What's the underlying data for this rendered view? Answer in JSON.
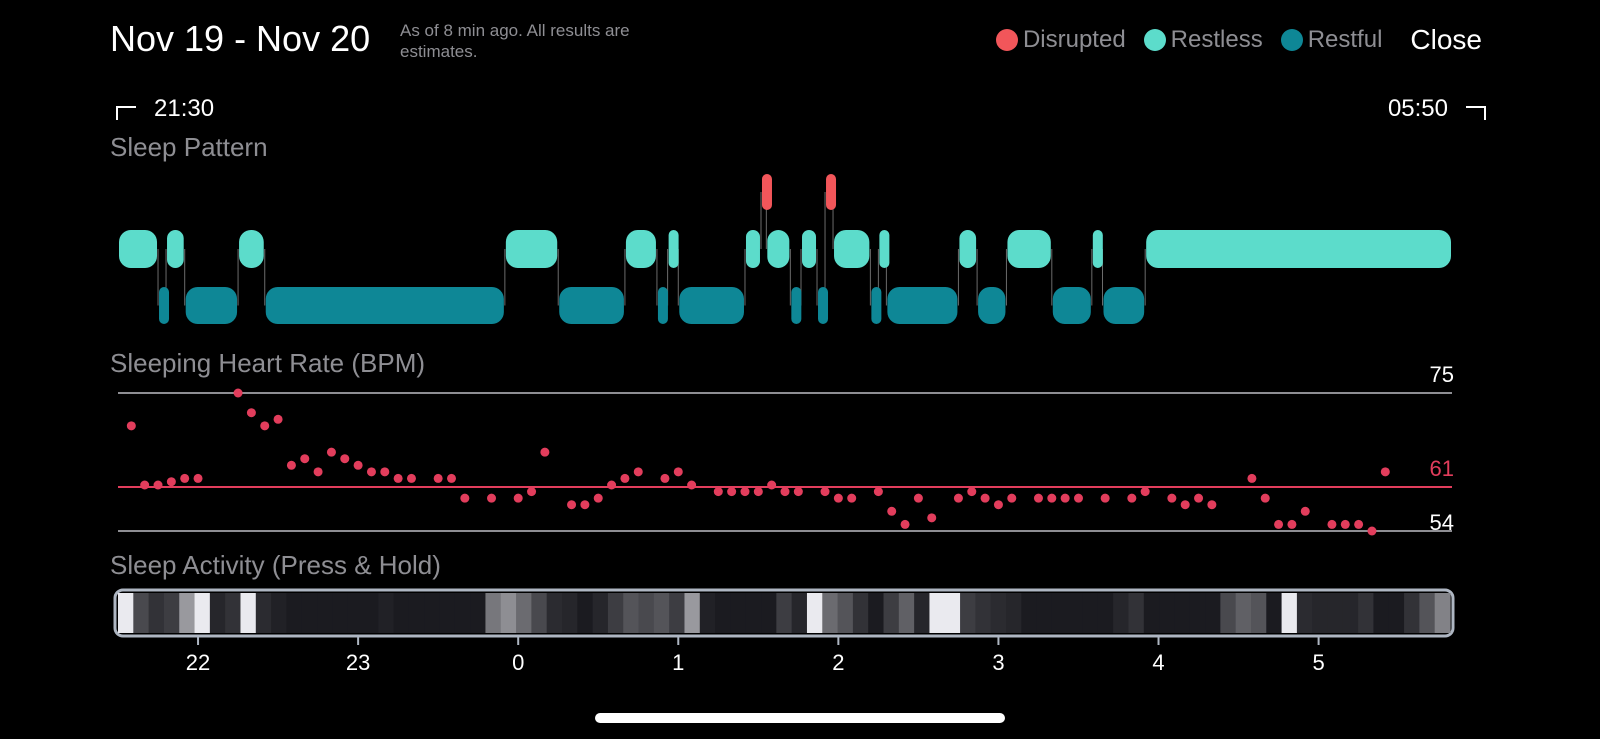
{
  "header": {
    "title": "Nov 19 - Nov 20",
    "subtitle": "As of 8 min ago. All results are estimates.",
    "close_label": "Close"
  },
  "legend": [
    {
      "label": "Disrupted",
      "color": "#f2565a"
    },
    {
      "label": "Restless",
      "color": "#5cdccb"
    },
    {
      "label": "Restful",
      "color": "#0e8796"
    }
  ],
  "time_range": {
    "start": "21:30",
    "end": "05:50"
  },
  "sleep_pattern": {
    "title": "Sleep Pattern",
    "segments": [
      {
        "start": "21:30",
        "end": "21:45",
        "stage": "restless"
      },
      {
        "start": "21:45",
        "end": "21:48",
        "stage": "restful"
      },
      {
        "start": "21:48",
        "end": "21:55",
        "stage": "restless"
      },
      {
        "start": "21:55",
        "end": "22:15",
        "stage": "restful"
      },
      {
        "start": "22:15",
        "end": "22:25",
        "stage": "restless"
      },
      {
        "start": "22:25",
        "end": "23:55",
        "stage": "restful"
      },
      {
        "start": "23:55",
        "end": "00:15",
        "stage": "restless"
      },
      {
        "start": "00:15",
        "end": "00:40",
        "stage": "restful"
      },
      {
        "start": "00:40",
        "end": "00:52",
        "stage": "restless"
      },
      {
        "start": "00:52",
        "end": "00:56",
        "stage": "restful"
      },
      {
        "start": "00:56",
        "end": "01:00",
        "stage": "restless"
      },
      {
        "start": "01:00",
        "end": "01:25",
        "stage": "restful"
      },
      {
        "start": "01:25",
        "end": "01:31",
        "stage": "restless"
      },
      {
        "start": "01:31",
        "end": "01:33",
        "stage": "disrupted"
      },
      {
        "start": "01:33",
        "end": "01:42",
        "stage": "restless"
      },
      {
        "start": "01:42",
        "end": "01:46",
        "stage": "restful"
      },
      {
        "start": "01:46",
        "end": "01:52",
        "stage": "restless"
      },
      {
        "start": "01:52",
        "end": "01:55",
        "stage": "restful"
      },
      {
        "start": "01:55",
        "end": "01:58",
        "stage": "disrupted"
      },
      {
        "start": "01:58",
        "end": "02:12",
        "stage": "restless"
      },
      {
        "start": "02:12",
        "end": "02:15",
        "stage": "restful"
      },
      {
        "start": "02:15",
        "end": "02:18",
        "stage": "restless"
      },
      {
        "start": "02:18",
        "end": "02:45",
        "stage": "restful"
      },
      {
        "start": "02:45",
        "end": "02:52",
        "stage": "restless"
      },
      {
        "start": "02:52",
        "end": "03:03",
        "stage": "restful"
      },
      {
        "start": "03:03",
        "end": "03:20",
        "stage": "restless"
      },
      {
        "start": "03:20",
        "end": "03:35",
        "stage": "restful"
      },
      {
        "start": "03:35",
        "end": "03:39",
        "stage": "restless"
      },
      {
        "start": "03:39",
        "end": "03:55",
        "stage": "restful"
      },
      {
        "start": "03:55",
        "end": "05:50",
        "stage": "restless"
      }
    ]
  },
  "heart_rate": {
    "title": "Sleeping Heart Rate (BPM)",
    "max_label": "75",
    "avg_label": "61",
    "min_label": "54"
  },
  "sleep_activity": {
    "title": "Sleep Activity (Press & Hold)",
    "levels": [
      0.95,
      0.25,
      0.15,
      0.2,
      0.6,
      0.95,
      0.1,
      0.15,
      0.95,
      0.12,
      0.08,
      0.05,
      0.05,
      0.05,
      0.05,
      0.05,
      0.05,
      0.08,
      0.05,
      0.05,
      0.05,
      0.05,
      0.05,
      0.05,
      0.45,
      0.55,
      0.4,
      0.25,
      0.12,
      0.1,
      0.05,
      0.1,
      0.2,
      0.3,
      0.25,
      0.3,
      0.2,
      0.6,
      0.08,
      0.05,
      0.05,
      0.05,
      0.05,
      0.2,
      0.1,
      0.95,
      0.4,
      0.3,
      0.15,
      0.05,
      0.2,
      0.35,
      0.1,
      0.95,
      0.95,
      0.2,
      0.15,
      0.12,
      0.1,
      0.05,
      0.05,
      0.05,
      0.05,
      0.05,
      0.05,
      0.1,
      0.15,
      0.05,
      0.05,
      0.05,
      0.05,
      0.05,
      0.25,
      0.35,
      0.3,
      0.05,
      0.95,
      0.12,
      0.1,
      0.1,
      0.1,
      0.15,
      0.05,
      0.05,
      0.15,
      0.3,
      0.5
    ]
  },
  "x_axis": {
    "ticks": [
      "22",
      "23",
      "0",
      "1",
      "2",
      "3",
      "4",
      "5"
    ]
  },
  "chart_data": [
    {
      "type": "scatter",
      "title": "Sleeping Heart Rate (BPM)",
      "xlabel": "",
      "ylabel": "",
      "x_range": [
        "21:30",
        "05:50"
      ],
      "ylim": [
        54,
        75
      ],
      "reference_lines": [
        75,
        61,
        54
      ],
      "points": [
        [
          "21:35",
          70
        ],
        [
          "21:40",
          61
        ],
        [
          "21:45",
          61
        ],
        [
          "21:50",
          61.5
        ],
        [
          "21:55",
          62
        ],
        [
          "22:00",
          62
        ],
        [
          "22:15",
          75
        ],
        [
          "22:20",
          72
        ],
        [
          "22:25",
          70
        ],
        [
          "22:30",
          71
        ],
        [
          "22:35",
          64
        ],
        [
          "22:40",
          65
        ],
        [
          "22:45",
          63
        ],
        [
          "22:50",
          66
        ],
        [
          "22:55",
          65
        ],
        [
          "23:00",
          64
        ],
        [
          "23:05",
          63
        ],
        [
          "23:10",
          63
        ],
        [
          "23:15",
          62
        ],
        [
          "23:20",
          62
        ],
        [
          "23:30",
          62
        ],
        [
          "23:35",
          62
        ],
        [
          "23:40",
          59
        ],
        [
          "23:50",
          59
        ],
        [
          "24:00",
          59
        ],
        [
          "24:05",
          60
        ],
        [
          "24:10",
          66
        ],
        [
          "24:20",
          58
        ],
        [
          "24:25",
          58
        ],
        [
          "24:30",
          59
        ],
        [
          "24:35",
          61
        ],
        [
          "24:40",
          62
        ],
        [
          "24:45",
          63
        ],
        [
          "24:55",
          62
        ],
        [
          "25:00",
          63
        ],
        [
          "25:05",
          61
        ],
        [
          "25:15",
          60
        ],
        [
          "25:20",
          60
        ],
        [
          "25:25",
          60
        ],
        [
          "25:30",
          60
        ],
        [
          "25:35",
          61
        ],
        [
          "25:40",
          60
        ],
        [
          "25:45",
          60
        ],
        [
          "25:55",
          60
        ],
        [
          "26:00",
          59
        ],
        [
          "26:05",
          59
        ],
        [
          "26:15",
          60
        ],
        [
          "26:20",
          57
        ],
        [
          "26:25",
          55
        ],
        [
          "26:30",
          59
        ],
        [
          "26:35",
          56
        ],
        [
          "26:45",
          59
        ],
        [
          "26:50",
          60
        ],
        [
          "26:55",
          59
        ],
        [
          "27:00",
          58
        ],
        [
          "27:05",
          59
        ],
        [
          "27:15",
          59
        ],
        [
          "27:20",
          59
        ],
        [
          "27:25",
          59
        ],
        [
          "27:30",
          59
        ],
        [
          "27:40",
          59
        ],
        [
          "27:50",
          59
        ],
        [
          "27:55",
          60
        ],
        [
          "28:05",
          59
        ],
        [
          "28:10",
          58
        ],
        [
          "28:15",
          59
        ],
        [
          "28:20",
          58
        ],
        [
          "28:35",
          62
        ],
        [
          "28:40",
          59
        ],
        [
          "28:45",
          55
        ],
        [
          "28:50",
          55
        ],
        [
          "28:55",
          57
        ],
        [
          "29:05",
          55
        ],
        [
          "29:10",
          55
        ],
        [
          "29:15",
          55
        ],
        [
          "29:20",
          54
        ],
        [
          "29:25",
          63
        ]
      ]
    }
  ]
}
